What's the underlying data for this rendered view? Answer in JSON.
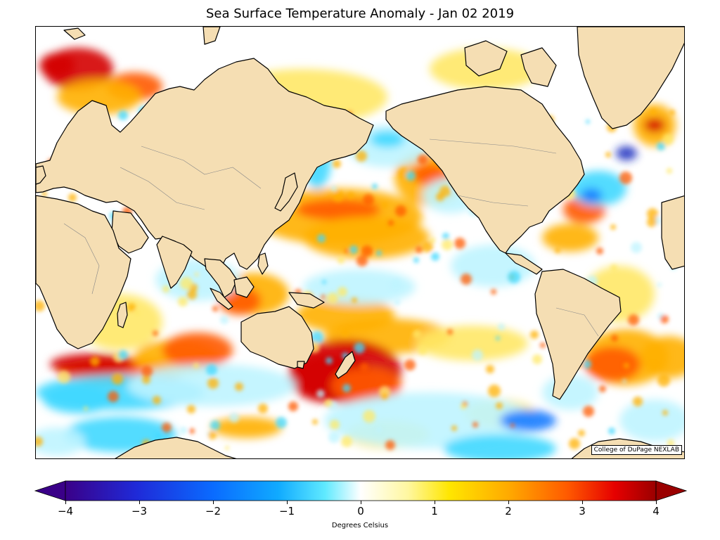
{
  "title": "Sea Surface Temperature Anomaly - Jan 02 2019",
  "credit": "College of DuPage NEXLAB",
  "colorbar": {
    "label": "Degrees Celsius",
    "range": [
      -4,
      4
    ],
    "ticks": [
      "−4",
      "−3",
      "−2",
      "−1",
      "0",
      "1",
      "2",
      "3",
      "4"
    ],
    "colors": [
      "#3a0088",
      "#1f2ad8",
      "#0a6bff",
      "#10aaff",
      "#60eaff",
      "#ffffff",
      "#fff7a0",
      "#ffe600",
      "#ffaa00",
      "#ff5a00",
      "#e60000",
      "#9a0000"
    ]
  },
  "palette": {
    "land": "#f5deb3",
    "coast": "#000000",
    "ocean_neutral": "#ffffff",
    "warm_light": "#ffe866",
    "warm": "#ffb000",
    "warm_strong": "#ff5a00",
    "hot": "#d40000",
    "cool_light": "#bff4ff",
    "cool": "#40d8ff",
    "cold": "#1a7cff",
    "very_cold": "#2030c0"
  }
}
